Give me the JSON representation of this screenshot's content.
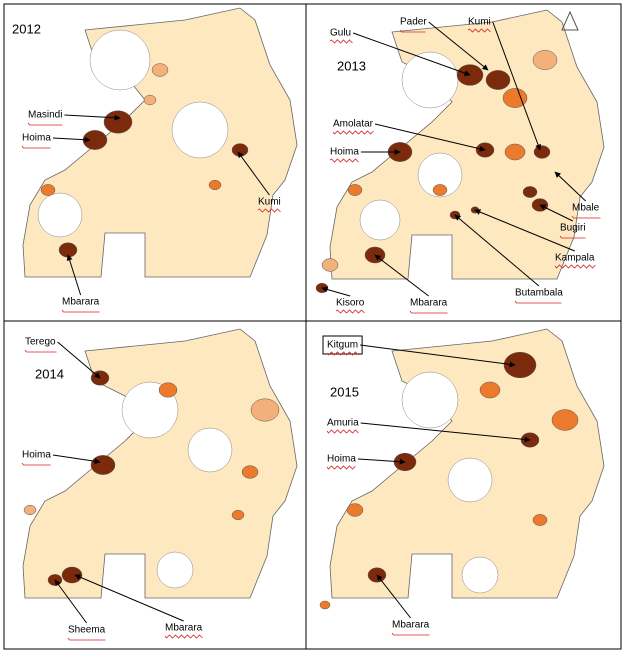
{
  "panels": [
    {
      "year": "2012",
      "labels": [
        "Masindi",
        "Hoima",
        "Kumi",
        "Mbarara"
      ]
    },
    {
      "year": "2013",
      "labels": [
        "Gulu",
        "Pader",
        "Kumi",
        "Amolatar",
        "Hoima",
        "Mbale",
        "Bugiri",
        "Kampala",
        "Butambala",
        "Mbarara",
        "Kisoro"
      ]
    },
    {
      "year": "2014",
      "labels": [
        "Terego",
        "Hoima",
        "Sheema",
        "Mbarara"
      ]
    },
    {
      "year": "2015",
      "labels": [
        "Kitgum",
        "Amuria",
        "Hoima",
        "Mbarara"
      ]
    }
  ]
}
